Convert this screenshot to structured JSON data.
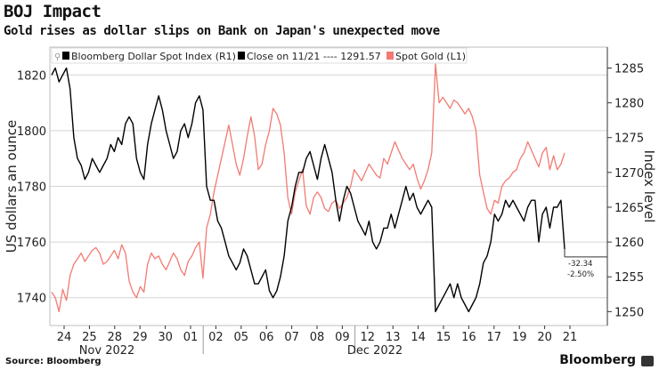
{
  "header": {
    "title": "BOJ Impact",
    "subtitle": "Gold rises as dollar slips on Bank on Japan's unexpected move"
  },
  "footer": {
    "source": "Source: Bloomberg",
    "brand": "Bloomberg"
  },
  "colors": {
    "gold": "#f27a72",
    "dollar": "#000000",
    "grid": "#d4d4d4",
    "axis": "#333333"
  },
  "chart_data": {
    "type": "line",
    "title": "",
    "ylabel_left": "US dollars an ounce",
    "ylabel_right": "Index level",
    "ylim_left": [
      1730,
      1830
    ],
    "ylim_right": [
      1248,
      1288
    ],
    "yticks_left": [
      1740,
      1760,
      1780,
      1800,
      1820
    ],
    "yticks_right": [
      1250,
      1255,
      1260,
      1265,
      1270,
      1275,
      1280,
      1285
    ],
    "grid": true,
    "legend_position": "top-left",
    "x_tick_labels": [
      "24",
      "25",
      "28",
      "29",
      "30",
      "01",
      "02",
      "05",
      "06",
      "07",
      "08",
      "09",
      "12",
      "13",
      "14",
      "15",
      "16",
      "17",
      "19",
      "20",
      "21"
    ],
    "month_labels": [
      "Nov 2022",
      "Dec 2022"
    ],
    "legend": [
      {
        "label": "Bloomberg Dollar Spot Index (R1)",
        "color": "#000000"
      },
      {
        "label": "Close on 11/21 ---- 1291.57",
        "color": "#000000"
      },
      {
        "label": "Spot Gold (L1)",
        "color": "#f27a72"
      }
    ],
    "annotation": {
      "change": "-32.34",
      "pct": "-2.50%",
      "last_value": 1259
    },
    "series": [
      {
        "name": "Spot Gold (L1)",
        "axis": "left",
        "color": "#f27a72",
        "values": [
          1742,
          1740,
          1735,
          1743,
          1739,
          1748,
          1752,
          1754,
          1756,
          1753,
          1755,
          1757,
          1758,
          1756,
          1752,
          1753,
          1755,
          1757,
          1754,
          1759,
          1756,
          1746,
          1742,
          1740,
          1744,
          1742,
          1752,
          1756,
          1754,
          1755,
          1752,
          1750,
          1753,
          1756,
          1754,
          1750,
          1748,
          1753,
          1755,
          1758,
          1760,
          1747,
          1765,
          1770,
          1778,
          1784,
          1790,
          1796,
          1802,
          1795,
          1788,
          1784,
          1790,
          1798,
          1805,
          1798,
          1786,
          1788,
          1795,
          1800,
          1808,
          1806,
          1802,
          1792,
          1776,
          1770,
          1778,
          1782,
          1786,
          1773,
          1770,
          1776,
          1778,
          1776,
          1772,
          1771,
          1774,
          1775,
          1772,
          1774,
          1776,
          1780,
          1786,
          1784,
          1782,
          1785,
          1788,
          1786,
          1784,
          1783,
          1790,
          1788,
          1792,
          1796,
          1793,
          1790,
          1788,
          1786,
          1788,
          1783,
          1779,
          1782,
          1786,
          1792,
          1824,
          1810,
          1812,
          1810,
          1808,
          1811,
          1810,
          1808,
          1806,
          1808,
          1805,
          1800,
          1784,
          1778,
          1772,
          1770,
          1775,
          1774,
          1780,
          1782,
          1783,
          1785,
          1786,
          1790,
          1792,
          1796,
          1793,
          1790,
          1787,
          1792,
          1794,
          1786,
          1791,
          1786,
          1788,
          1792
        ]
      },
      {
        "name": "Bloomberg Dollar Spot Index (R1)",
        "axis": "right",
        "color": "#000000",
        "values": [
          1284,
          1285,
          1283,
          1284,
          1285,
          1282,
          1275,
          1272,
          1271,
          1269,
          1270,
          1272,
          1271,
          1270,
          1271,
          1272,
          1274,
          1273,
          1275,
          1274,
          1277,
          1278,
          1277,
          1272,
          1270,
          1269,
          1274,
          1277,
          1279,
          1281,
          1279,
          1276,
          1274,
          1272,
          1273,
          1276,
          1277,
          1275,
          1277,
          1280,
          1281,
          1279,
          1268,
          1266,
          1266,
          1263,
          1262,
          1260,
          1258,
          1257,
          1256,
          1257,
          1259,
          1258,
          1256,
          1254,
          1254,
          1255,
          1256,
          1253,
          1252,
          1253,
          1255,
          1258,
          1263,
          1265,
          1268,
          1270,
          1270,
          1272,
          1273,
          1271,
          1269,
          1272,
          1274,
          1272,
          1270,
          1266,
          1263,
          1266,
          1268,
          1267,
          1265,
          1263,
          1262,
          1261,
          1263,
          1260,
          1259,
          1260,
          1262,
          1262,
          1264,
          1262,
          1264,
          1266,
          1268,
          1266,
          1267,
          1265,
          1264,
          1265,
          1266,
          1265,
          1250,
          1251,
          1252,
          1253,
          1254,
          1252,
          1254,
          1252,
          1251,
          1250,
          1251,
          1252,
          1254,
          1257,
          1258,
          1260,
          1264,
          1263,
          1264,
          1266,
          1265,
          1266,
          1265,
          1264,
          1263,
          1265,
          1266,
          1266,
          1260,
          1264,
          1265,
          1262,
          1265,
          1265,
          1266,
          1259
        ]
      }
    ]
  }
}
